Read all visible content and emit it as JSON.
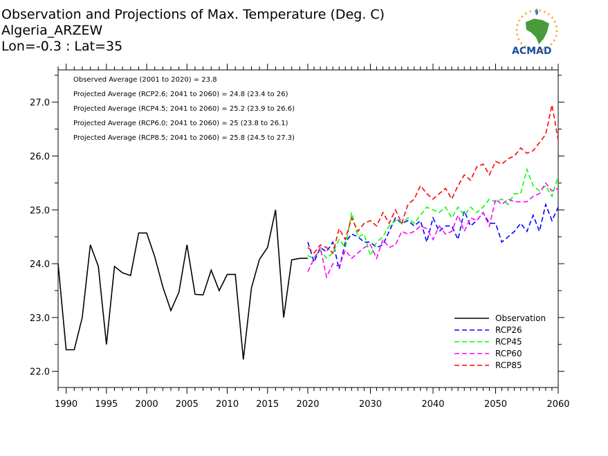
{
  "titles": [
    "Observation and Projections of Max. Temperature (Deg. C)",
    "Algeria_ARZEW",
    "Lon=-0.3 : Lat=35"
  ],
  "stats": [
    "Observed Average (2001 to 2020) = 23.8",
    "Projected Average (RCP2.6; 2041 to 2060) = 24.8 (23.4 to 26)",
    "Projected Average (RCP4.5; 2041 to 2060) = 25.2 (23.9 to 26.6)",
    "Projected Average (RCP6.0; 2041 to 2060) = 25 (23.8 to 26.1)",
    "Projected Average (RCP8.5; 2041 to 2060) = 25.8 (24.5 to 27.3)"
  ],
  "logo": {
    "text": "ACMAD"
  },
  "colors": {
    "Observation": "#000000",
    "RCP26": "#0000ff",
    "RCP45": "#00ff00",
    "RCP60": "#ff00ff",
    "RCP85": "#ff0000"
  },
  "chart_data": {
    "type": "line",
    "title": "Observation and Projections of Max. Temperature (Deg. C)",
    "x_ticks_left": [
      1990,
      1995,
      2000,
      2005,
      2010,
      2015,
      2020
    ],
    "x_ticks_right": [
      2030,
      2040,
      2050,
      2060
    ],
    "y_ticks": [
      "22.0",
      "23.0",
      "24.0",
      "25.0",
      "26.0",
      "27.0"
    ],
    "ylim": [
      21.7,
      27.6
    ],
    "legend_position": "bottom-right",
    "series": [
      {
        "name": "Observation",
        "style": "solid",
        "x": [
          1989,
          1990,
          1991,
          1992,
          1993,
          1994,
          1995,
          1996,
          1997,
          1998,
          1999,
          2000,
          2001,
          2002,
          2003,
          2004,
          2005,
          2006,
          2007,
          2008,
          2009,
          2010,
          2011,
          2012,
          2013,
          2014,
          2015,
          2016,
          2017,
          2018,
          2019,
          2020
        ],
        "values": [
          24.0,
          22.4,
          22.4,
          23.0,
          24.35,
          23.95,
          22.5,
          23.95,
          23.83,
          23.78,
          24.57,
          24.57,
          24.13,
          23.57,
          23.13,
          23.47,
          24.35,
          23.43,
          23.42,
          23.88,
          23.5,
          23.8,
          23.8,
          22.22,
          23.55,
          24.08,
          24.3,
          25.0,
          23.0,
          24.07,
          24.1,
          24.1
        ]
      },
      {
        "name": "RCP26",
        "style": "dashed",
        "x": [
          2020,
          2021,
          2022,
          2023,
          2024,
          2025,
          2026,
          2027,
          2028,
          2029,
          2030,
          2031,
          2032,
          2033,
          2034,
          2035,
          2036,
          2037,
          2038,
          2039,
          2040,
          2041,
          2042,
          2043,
          2044,
          2045,
          2046,
          2047,
          2048,
          2049,
          2050,
          2051,
          2052,
          2053,
          2054,
          2055,
          2056,
          2057,
          2058,
          2059,
          2060
        ],
        "values": [
          24.4,
          24.03,
          24.3,
          24.22,
          24.4,
          23.9,
          24.4,
          24.55,
          24.5,
          24.4,
          24.4,
          24.3,
          24.35,
          24.6,
          24.85,
          24.75,
          24.8,
          24.7,
          24.8,
          24.4,
          24.85,
          24.6,
          24.7,
          24.7,
          24.45,
          24.98,
          24.7,
          24.8,
          24.95,
          24.75,
          24.75,
          24.4,
          24.5,
          24.6,
          24.75,
          24.6,
          24.9,
          24.6,
          25.1,
          24.8,
          25.05
        ]
      },
      {
        "name": "RCP45",
        "style": "dashed",
        "x": [
          2020,
          2021,
          2022,
          2023,
          2024,
          2025,
          2026,
          2027,
          2028,
          2029,
          2030,
          2031,
          2032,
          2033,
          2034,
          2035,
          2036,
          2037,
          2038,
          2039,
          2040,
          2041,
          2042,
          2043,
          2044,
          2045,
          2046,
          2047,
          2048,
          2049,
          2050,
          2051,
          2052,
          2053,
          2054,
          2055,
          2056,
          2057,
          2058,
          2059,
          2060
        ],
        "values": [
          24.15,
          24.1,
          24.25,
          24.1,
          24.2,
          24.45,
          24.3,
          24.95,
          24.5,
          24.55,
          24.15,
          24.4,
          24.5,
          24.7,
          24.8,
          24.75,
          24.85,
          24.75,
          24.9,
          25.05,
          25.0,
          24.95,
          25.05,
          24.85,
          25.05,
          24.9,
          25.05,
          24.95,
          25.05,
          25.2,
          25.15,
          25.2,
          25.1,
          25.3,
          25.3,
          25.75,
          25.45,
          25.35,
          25.45,
          25.25,
          25.62
        ]
      },
      {
        "name": "RCP60",
        "style": "dashed",
        "x": [
          2020,
          2021,
          2022,
          2023,
          2024,
          2025,
          2026,
          2027,
          2028,
          2029,
          2030,
          2031,
          2032,
          2033,
          2034,
          2035,
          2036,
          2037,
          2038,
          2039,
          2040,
          2041,
          2042,
          2043,
          2044,
          2045,
          2046,
          2047,
          2048,
          2049,
          2050,
          2051,
          2052,
          2053,
          2054,
          2055,
          2056,
          2057,
          2058,
          2059,
          2060
        ],
        "values": [
          23.85,
          24.1,
          24.3,
          23.75,
          24.0,
          23.95,
          24.25,
          24.1,
          24.2,
          24.3,
          24.35,
          24.1,
          24.45,
          24.3,
          24.35,
          24.6,
          24.55,
          24.6,
          24.7,
          24.65,
          24.45,
          24.7,
          24.55,
          24.6,
          24.9,
          24.6,
          24.85,
          24.8,
          24.95,
          24.7,
          25.2,
          25.1,
          25.2,
          25.15,
          25.15,
          25.15,
          25.25,
          25.3,
          25.5,
          25.35,
          25.4
        ]
      },
      {
        "name": "RCP85",
        "style": "dashed",
        "x": [
          2020,
          2021,
          2022,
          2023,
          2024,
          2025,
          2026,
          2027,
          2028,
          2029,
          2030,
          2031,
          2032,
          2033,
          2034,
          2035,
          2036,
          2037,
          2038,
          2039,
          2040,
          2041,
          2042,
          2043,
          2044,
          2045,
          2046,
          2047,
          2048,
          2049,
          2050,
          2051,
          2052,
          2053,
          2054,
          2055,
          2056,
          2057,
          2058,
          2059,
          2060
        ],
        "values": [
          24.3,
          24.2,
          24.35,
          24.3,
          24.2,
          24.65,
          24.45,
          24.85,
          24.6,
          24.75,
          24.8,
          24.7,
          24.95,
          24.75,
          25.0,
          24.75,
          25.1,
          25.2,
          25.45,
          25.3,
          25.2,
          25.3,
          25.4,
          25.2,
          25.45,
          25.65,
          25.55,
          25.8,
          25.85,
          25.65,
          25.9,
          25.85,
          25.95,
          26.0,
          26.15,
          26.05,
          26.1,
          26.25,
          26.4,
          26.95,
          26.3
        ]
      }
    ]
  }
}
